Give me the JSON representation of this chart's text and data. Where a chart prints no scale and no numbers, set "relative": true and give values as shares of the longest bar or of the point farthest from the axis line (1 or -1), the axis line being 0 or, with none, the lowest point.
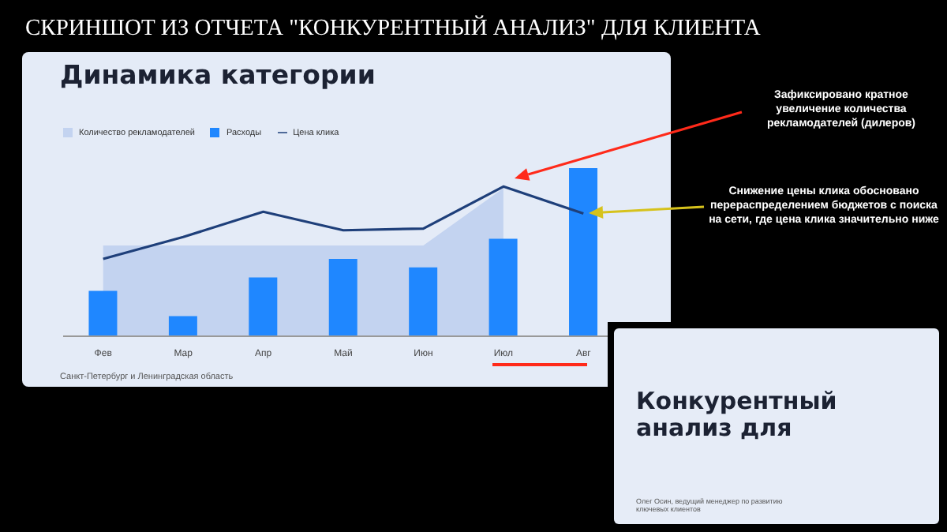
{
  "chart_data": [
    {
      "type": "bar",
      "title": "Динамика категории",
      "subtitle": "СКРИНШОТ ИЗ ОТЧЕТА \"КОНКУРЕНТНЫЙ АНАЛИЗ\" ДЛЯ КЛИЕНТА",
      "relative": true,
      "legend": "top left",
      "categories": [
        "Фев",
        "Мар",
        "Апр",
        "Май",
        "Июн",
        "Июл",
        "Авг"
      ],
      "series": [
        {
          "name": "Количество рекламодателей",
          "type": "area",
          "color": "#c3d3f0",
          "values": [
            0.54,
            0.54,
            0.54,
            0.54,
            0.54,
            0.88,
            null
          ]
        },
        {
          "name": "Расходы",
          "color": "#1f87ff",
          "values": [
            0.27,
            0.12,
            0.35,
            0.46,
            0.41,
            0.58,
            1
          ]
        },
        {
          "name": "Цена клика",
          "type": "line",
          "color": "#1e3f7a",
          "values": [
            0.46,
            0.59,
            0.74,
            0.63,
            0.64,
            0.89,
            0.73
          ]
        }
      ],
      "annotations": [
        "Зафиксировано кратное увеличение количества рекламодателей (дилеров)",
        "Снижение цены клика обосновано перераспределением бюджетов с поиска на сети, где цена клика значительно ниже",
        "Санкт-Петербург и Ленинградская область"
      ]
    },
    {
      "type": "other",
      "title": "Конкурентный анализ для",
      "annotations": [
        "Олег Осин, ведущий менеджер по развитию ключевых клиентов"
      ]
    }
  ]
}
